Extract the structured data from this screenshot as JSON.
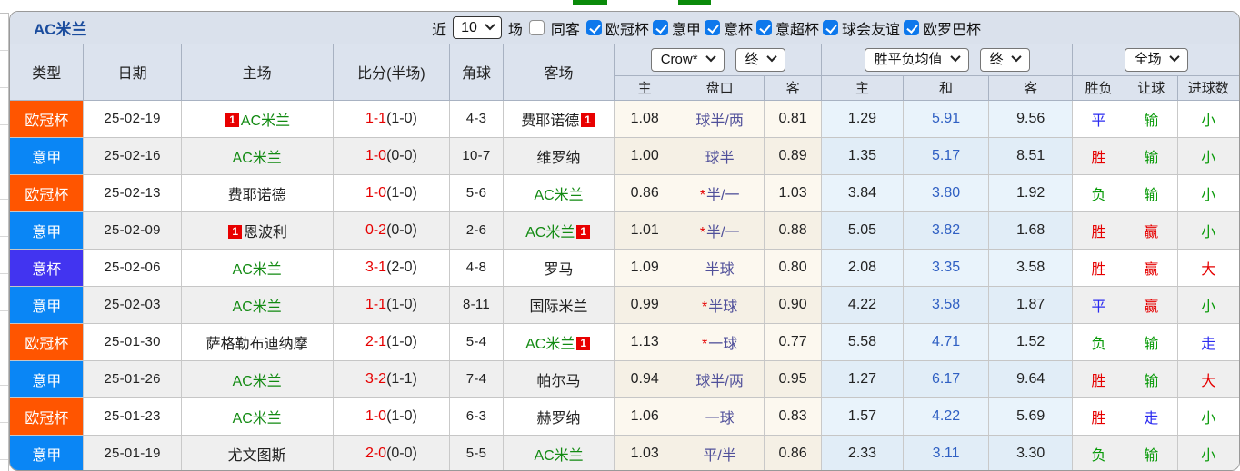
{
  "title": "AC米兰",
  "filters": {
    "recent_label": "近",
    "recent_value": "10",
    "games_label": "场",
    "same_venue": {
      "label": "同客",
      "checked": false
    },
    "leagues": [
      {
        "label": "欧冠杯",
        "checked": true
      },
      {
        "label": "意甲",
        "checked": true
      },
      {
        "label": "意杯",
        "checked": true
      },
      {
        "label": "意超杯",
        "checked": true
      },
      {
        "label": "球会友谊",
        "checked": true
      },
      {
        "label": "欧罗巴杯",
        "checked": true
      }
    ]
  },
  "table": {
    "main_headers": [
      "类型",
      "日期",
      "主场",
      "比分(半场)",
      "角球",
      "客场"
    ],
    "sub_headers": [
      "主",
      "盘口",
      "客",
      "主",
      "和",
      "客",
      "胜负",
      "让球",
      "进球数"
    ],
    "selects": {
      "odds_company": "Crow*",
      "odds_final_1": "终",
      "avg_mode": "胜平负均值",
      "odds_final_2": "终",
      "scope": "全场"
    },
    "league_colors": {
      "ucl": "#ff5500",
      "seriea": "#0a86f5",
      "coppa": "#4234f0"
    },
    "rows": [
      {
        "league": "欧冠杯",
        "lc": "ucl",
        "date": "25-02-19",
        "home": "AC米兰",
        "home_ac": true,
        "home_card": true,
        "score": "1-1",
        "half": "(1-0)",
        "corners": "4-3",
        "away": "费耶诺德",
        "away_ac": false,
        "away_card": true,
        "o1": "1.08",
        "pan": "球半/两",
        "star": false,
        "o2": "0.81",
        "a1": "1.29",
        "a2": "5.91",
        "a3": "9.56",
        "r": "平",
        "rc": "blue",
        "h": "输",
        "hc": "green",
        "g": "小",
        "gc": "green"
      },
      {
        "league": "意甲",
        "lc": "seriea",
        "date": "25-02-16",
        "home": "AC米兰",
        "home_ac": true,
        "home_card": false,
        "score": "1-0",
        "half": "(0-0)",
        "corners": "10-7",
        "away": "维罗纳",
        "away_ac": false,
        "away_card": false,
        "o1": "1.00",
        "pan": "球半",
        "star": false,
        "o2": "0.89",
        "a1": "1.35",
        "a2": "5.17",
        "a3": "8.51",
        "r": "胜",
        "rc": "red",
        "h": "输",
        "hc": "green",
        "g": "小",
        "gc": "green"
      },
      {
        "league": "欧冠杯",
        "lc": "ucl",
        "date": "25-02-13",
        "home": "费耶诺德",
        "home_ac": false,
        "home_card": false,
        "score": "1-0",
        "half": "(1-0)",
        "corners": "5-6",
        "away": "AC米兰",
        "away_ac": true,
        "away_card": false,
        "o1": "0.86",
        "pan": "半/一",
        "star": true,
        "o2": "1.03",
        "a1": "3.84",
        "a2": "3.80",
        "a3": "1.92",
        "r": "负",
        "rc": "green",
        "h": "输",
        "hc": "green",
        "g": "小",
        "gc": "green"
      },
      {
        "league": "意甲",
        "lc": "seriea",
        "date": "25-02-09",
        "home": "恩波利",
        "home_ac": false,
        "home_card": true,
        "score": "0-2",
        "half": "(0-0)",
        "corners": "2-6",
        "away": "AC米兰",
        "away_ac": true,
        "away_card": true,
        "o1": "1.01",
        "pan": "半/一",
        "star": true,
        "o2": "0.88",
        "a1": "5.05",
        "a2": "3.82",
        "a3": "1.68",
        "r": "胜",
        "rc": "red",
        "h": "赢",
        "hc": "red",
        "g": "小",
        "gc": "green"
      },
      {
        "league": "意杯",
        "lc": "coppa",
        "date": "25-02-06",
        "home": "AC米兰",
        "home_ac": true,
        "home_card": false,
        "score": "3-1",
        "half": "(2-0)",
        "corners": "4-8",
        "away": "罗马",
        "away_ac": false,
        "away_card": false,
        "o1": "1.09",
        "pan": "半球",
        "star": false,
        "o2": "0.80",
        "a1": "2.08",
        "a2": "3.35",
        "a3": "3.58",
        "r": "胜",
        "rc": "red",
        "h": "赢",
        "hc": "red",
        "g": "大",
        "gc": "red"
      },
      {
        "league": "意甲",
        "lc": "seriea",
        "date": "25-02-03",
        "home": "AC米兰",
        "home_ac": true,
        "home_card": false,
        "score": "1-1",
        "half": "(1-0)",
        "corners": "8-11",
        "away": "国际米兰",
        "away_ac": false,
        "away_card": false,
        "o1": "0.99",
        "pan": "半球",
        "star": true,
        "o2": "0.90",
        "a1": "4.22",
        "a2": "3.58",
        "a3": "1.87",
        "r": "平",
        "rc": "blue",
        "h": "赢",
        "hc": "red",
        "g": "小",
        "gc": "green"
      },
      {
        "league": "欧冠杯",
        "lc": "ucl",
        "date": "25-01-30",
        "home": "萨格勒布迪纳摩",
        "home_ac": false,
        "home_card": false,
        "score": "2-1",
        "half": "(1-0)",
        "corners": "5-4",
        "away": "AC米兰",
        "away_ac": true,
        "away_card": true,
        "o1": "1.13",
        "pan": "一球",
        "star": true,
        "o2": "0.77",
        "a1": "5.58",
        "a2": "4.71",
        "a3": "1.52",
        "r": "负",
        "rc": "green",
        "h": "输",
        "hc": "green",
        "g": "走",
        "gc": "blue"
      },
      {
        "league": "意甲",
        "lc": "seriea",
        "date": "25-01-26",
        "home": "AC米兰",
        "home_ac": true,
        "home_card": false,
        "score": "3-2",
        "half": "(1-1)",
        "corners": "7-4",
        "away": "帕尔马",
        "away_ac": false,
        "away_card": false,
        "o1": "0.94",
        "pan": "球半/两",
        "star": false,
        "o2": "0.95",
        "a1": "1.27",
        "a2": "6.17",
        "a3": "9.64",
        "r": "胜",
        "rc": "red",
        "h": "输",
        "hc": "green",
        "g": "大",
        "gc": "red"
      },
      {
        "league": "欧冠杯",
        "lc": "ucl",
        "date": "25-01-23",
        "home": "AC米兰",
        "home_ac": true,
        "home_card": false,
        "score": "1-0",
        "half": "(1-0)",
        "corners": "6-3",
        "away": "赫罗纳",
        "away_ac": false,
        "away_card": false,
        "o1": "1.06",
        "pan": "一球",
        "star": false,
        "o2": "0.83",
        "a1": "1.57",
        "a2": "4.22",
        "a3": "5.69",
        "r": "胜",
        "rc": "red",
        "h": "走",
        "hc": "blue",
        "g": "小",
        "gc": "green"
      },
      {
        "league": "意甲",
        "lc": "seriea",
        "date": "25-01-19",
        "home": "尤文图斯",
        "home_ac": false,
        "home_card": false,
        "score": "2-0",
        "half": "(0-0)",
        "corners": "5-5",
        "away": "AC米兰",
        "away_ac": true,
        "away_card": false,
        "o1": "1.03",
        "pan": "平/半",
        "star": false,
        "o2": "0.86",
        "a1": "2.33",
        "a2": "3.11",
        "a3": "3.30",
        "r": "负",
        "rc": "green",
        "h": "输",
        "hc": "green",
        "g": "小",
        "gc": "green"
      }
    ]
  }
}
